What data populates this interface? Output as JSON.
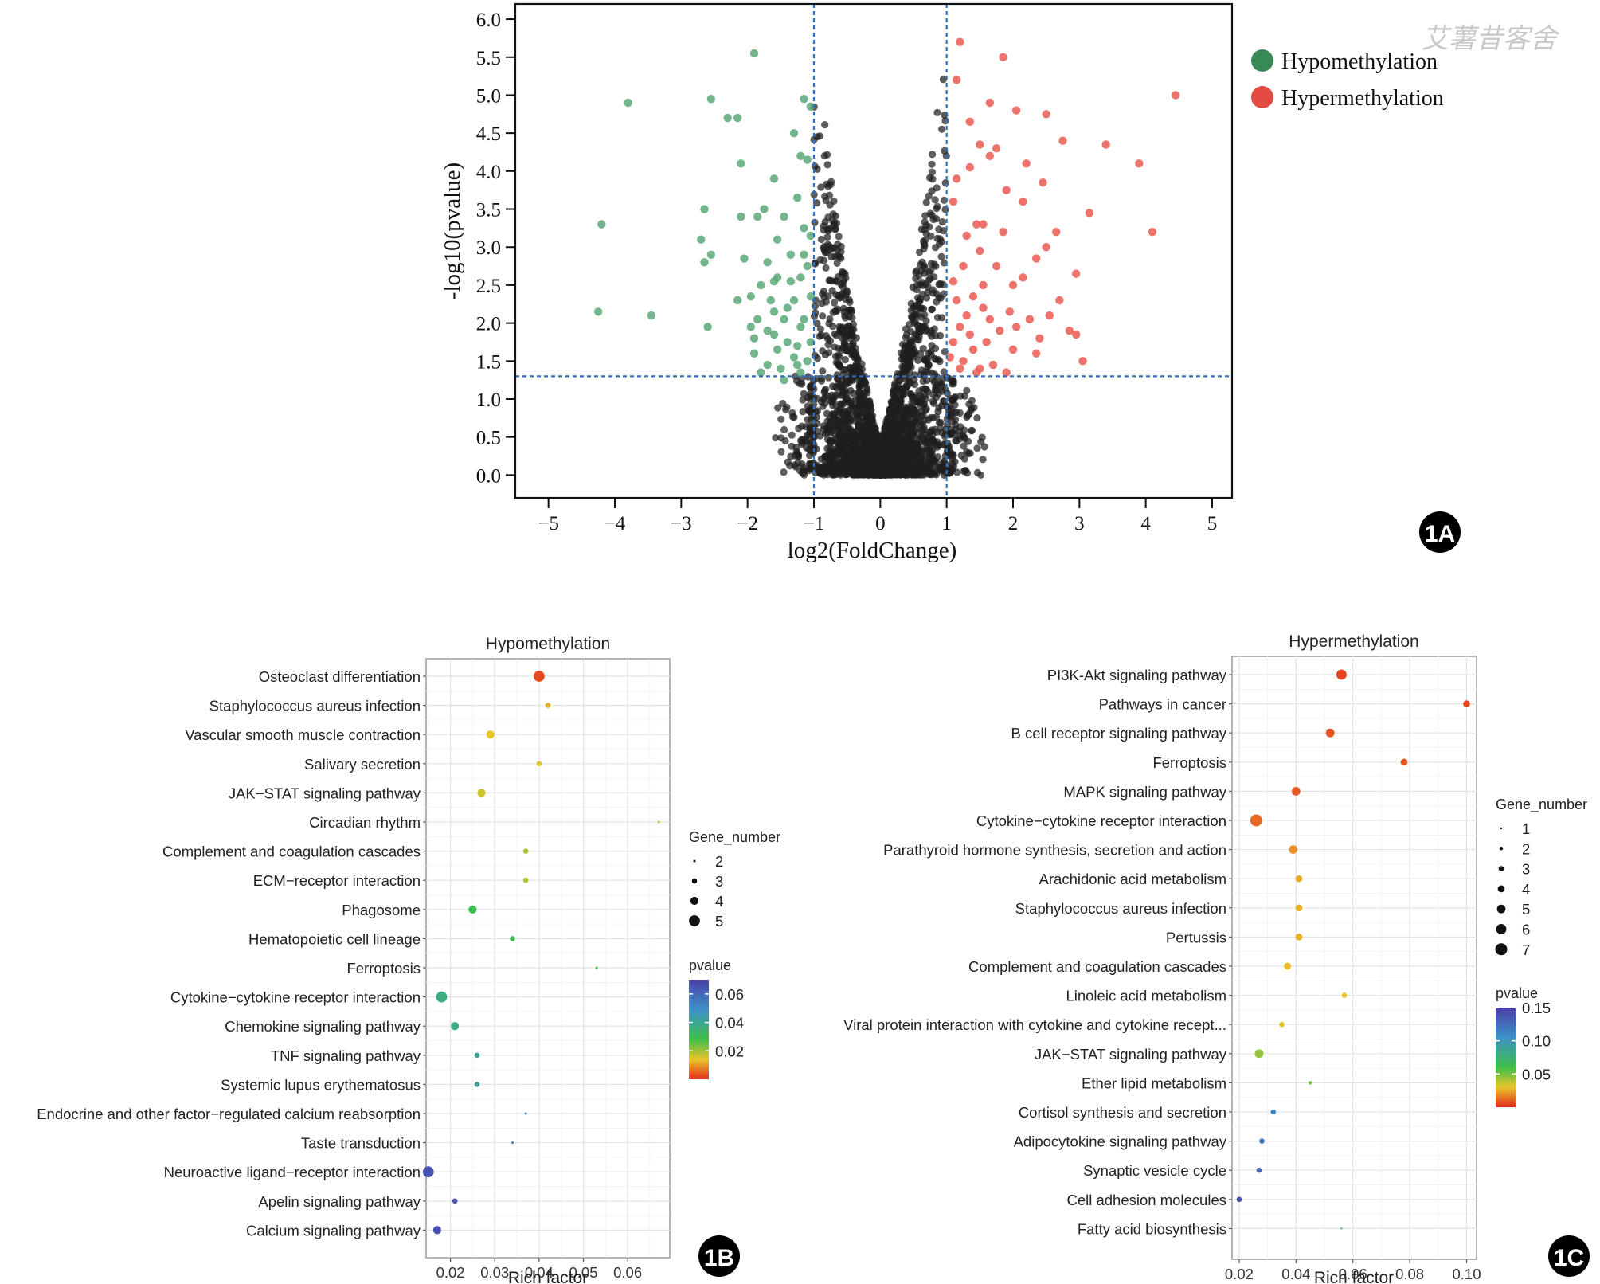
{
  "watermark": "艾薯昔客舍",
  "chart_data": [
    {
      "id": "volcano",
      "panel_label": "1A",
      "type": "scatter",
      "xlabel": "log2(FoldChange)",
      "ylabel": "-log10(pvalue)",
      "xlim": [
        -5.5,
        5.3
      ],
      "ylim": [
        -0.3,
        6.2
      ],
      "xticks": [
        -5,
        -4,
        -3,
        -2,
        -1,
        0,
        1,
        2,
        3,
        4,
        5
      ],
      "xtick_labels": [
        "−5",
        "−4",
        "−3",
        "−2",
        "−1",
        "0",
        "1",
        "2",
        "3",
        "4",
        "5"
      ],
      "yticks": [
        0,
        0.5,
        1,
        1.5,
        2,
        2.5,
        3,
        3.5,
        4,
        4.5,
        5,
        5.5,
        6
      ],
      "ytick_labels": [
        "0.0",
        "0.5",
        "1.0",
        "1.5",
        "2.0",
        "2.5",
        "3.0",
        "3.5",
        "4.0",
        "4.5",
        "5.0",
        "5.5",
        "6.0"
      ],
      "thresholds": {
        "x": [
          -1,
          1
        ],
        "y": 1.3
      },
      "legend": [
        {
          "label": "Hypomethylation",
          "color": "#3a8a57"
        },
        {
          "label": "Hypermethylation",
          "color": "#e24c43"
        }
      ],
      "colors": {
        "hypo": "#5aa878",
        "hyper": "#ea5a52",
        "ns": "#1e1e1e"
      },
      "series": [
        {
          "name": "Hypomethylation",
          "points": [
            [
              -3.8,
              4.9
            ],
            [
              -4.2,
              3.3
            ],
            [
              -4.25,
              2.15
            ],
            [
              -3.45,
              2.1
            ],
            [
              -2.55,
              4.95
            ],
            [
              -2.3,
              4.7
            ],
            [
              -2.15,
              4.7
            ],
            [
              -2.1,
              4.1
            ],
            [
              -1.9,
              5.55
            ],
            [
              -2.65,
              3.5
            ],
            [
              -2.7,
              3.1
            ],
            [
              -2.65,
              2.8
            ],
            [
              -2.55,
              2.9
            ],
            [
              -2.6,
              1.95
            ],
            [
              -2.1,
              3.4
            ],
            [
              -1.85,
              3.4
            ],
            [
              -1.75,
              3.5
            ],
            [
              -1.55,
              3.1
            ],
            [
              -1.45,
              3.4
            ],
            [
              -1.3,
              4.5
            ],
            [
              -1.15,
              4.95
            ],
            [
              -1.2,
              4.2
            ],
            [
              -1.25,
              3.65
            ],
            [
              -1.05,
              4.85
            ],
            [
              -1.1,
              4.15
            ],
            [
              -1.6,
              3.9
            ],
            [
              -2.05,
              2.85
            ],
            [
              -2.15,
              2.3
            ],
            [
              -1.95,
              2.35
            ],
            [
              -1.8,
              2.5
            ],
            [
              -1.7,
              2.8
            ],
            [
              -1.55,
              2.6
            ],
            [
              -1.4,
              2.2
            ],
            [
              -1.35,
              2.9
            ],
            [
              -1.2,
              2.6
            ],
            [
              -1.15,
              2.9
            ],
            [
              -1.05,
              2.35
            ],
            [
              -1.9,
              1.6
            ],
            [
              -1.7,
              1.9
            ],
            [
              -1.5,
              1.4
            ],
            [
              -1.25,
              1.7
            ],
            [
              -1.2,
              1.95
            ],
            [
              -1.1,
              1.5
            ],
            [
              -1.05,
              1.75
            ],
            [
              -1.6,
              2.15
            ],
            [
              -1.85,
              2.05
            ],
            [
              -1.45,
              1.25
            ],
            [
              -1.6,
              2.55
            ],
            [
              -1.3,
              2.3
            ],
            [
              -1.15,
              2.05
            ],
            [
              -1.25,
              1.45
            ],
            [
              -1.4,
              1.75
            ],
            [
              -1.7,
              1.45
            ],
            [
              -1.55,
              1.65
            ],
            [
              -1.9,
              1.8
            ],
            [
              -1.35,
              2.55
            ],
            [
              -1.1,
              2.75
            ],
            [
              -1.05,
              3.15
            ],
            [
              -1.15,
              3.25
            ],
            [
              -1.3,
              1.55
            ],
            [
              -1.45,
              2.05
            ],
            [
              -1.65,
              2.3
            ],
            [
              -1.8,
              1.35
            ],
            [
              -1.95,
              1.95
            ],
            [
              -1.6,
              1.85
            ],
            [
              -1.2,
              1.35
            ]
          ]
        },
        {
          "name": "Hypermethylation",
          "points": [
            [
              1.2,
              5.7
            ],
            [
              1.85,
              5.5
            ],
            [
              1.65,
              4.9
            ],
            [
              2.05,
              4.8
            ],
            [
              2.5,
              4.75
            ],
            [
              2.75,
              4.4
            ],
            [
              3.4,
              4.35
            ],
            [
              3.9,
              4.1
            ],
            [
              4.45,
              5.0
            ],
            [
              4.1,
              3.2
            ],
            [
              3.15,
              3.45
            ],
            [
              2.95,
              2.65
            ],
            [
              2.85,
              1.9
            ],
            [
              2.95,
              1.85
            ],
            [
              3.05,
              1.5
            ],
            [
              1.15,
              5.2
            ],
            [
              1.35,
              4.65
            ],
            [
              1.5,
              4.35
            ],
            [
              1.75,
              4.3
            ],
            [
              1.65,
              4.2
            ],
            [
              2.2,
              4.1
            ],
            [
              2.45,
              3.85
            ],
            [
              1.9,
              3.75
            ],
            [
              1.55,
              3.3
            ],
            [
              1.45,
              3.3
            ],
            [
              1.3,
              3.15
            ],
            [
              2.15,
              3.6
            ],
            [
              2.5,
              3.0
            ],
            [
              2.65,
              3.2
            ],
            [
              2.35,
              2.85
            ],
            [
              2.7,
              2.3
            ],
            [
              2.55,
              2.1
            ],
            [
              2.15,
              2.6
            ],
            [
              2.0,
              2.5
            ],
            [
              1.75,
              2.75
            ],
            [
              1.55,
              2.5
            ],
            [
              1.4,
              2.35
            ],
            [
              1.3,
              2.1
            ],
            [
              1.2,
              1.95
            ],
            [
              1.1,
              1.75
            ],
            [
              1.05,
              1.55
            ],
            [
              1.25,
              1.5
            ],
            [
              1.5,
              1.4
            ],
            [
              1.6,
              1.75
            ],
            [
              1.8,
              1.9
            ],
            [
              1.95,
              2.15
            ],
            [
              2.25,
              2.05
            ],
            [
              2.4,
              1.8
            ],
            [
              2.0,
              1.65
            ],
            [
              1.7,
              1.45
            ],
            [
              1.4,
              1.65
            ],
            [
              1.15,
              2.3
            ],
            [
              1.35,
              1.85
            ],
            [
              1.65,
              2.05
            ],
            [
              1.9,
              1.35
            ],
            [
              2.35,
              1.6
            ],
            [
              1.2,
              1.4
            ],
            [
              1.5,
              2.95
            ],
            [
              1.85,
              3.2
            ],
            [
              1.35,
              4.05
            ],
            [
              1.1,
              3.6
            ],
            [
              1.15,
              3.9
            ],
            [
              1.25,
              2.75
            ],
            [
              1.55,
              2.2
            ],
            [
              2.05,
              1.95
            ],
            [
              1.45,
              1.35
            ],
            [
              1.1,
              2.55
            ]
          ]
        }
      ]
    },
    {
      "id": "enrich-hypo",
      "panel_label": "1B",
      "type": "scatter",
      "title": "Hypomethylation",
      "xlabel": "Rich factor",
      "xlim": [
        0.0145,
        0.0695
      ],
      "xticks": [
        0.02,
        0.03,
        0.04,
        0.05,
        0.06
      ],
      "xtick_labels": [
        "0.02",
        "0.03",
        "0.04",
        "0.05",
        "0.06"
      ],
      "size_legend": {
        "title": "Gene_number",
        "values": [
          2,
          3,
          4,
          5
        ],
        "labels": [
          "2",
          "3",
          "4",
          "5"
        ]
      },
      "color_legend": {
        "title": "pvalue",
        "range": [
          0.0,
          0.07
        ],
        "ticks": [
          0.06,
          0.04,
          0.02
        ],
        "tick_labels": [
          "0.06",
          "0.04",
          "0.02"
        ]
      },
      "pathways": [
        "Osteoclast differentiation",
        "Staphylococcus aureus infection",
        "Vascular smooth muscle contraction",
        "Salivary secretion",
        "JAK−STAT signaling pathway",
        "Circadian rhythm",
        "Complement and coagulation cascades",
        "ECM−receptor interaction",
        "Phagosome",
        "Hematopoietic cell lineage",
        "Ferroptosis",
        "Cytokine−cytokine receptor interaction",
        "Chemokine signaling pathway",
        "TNF signaling pathway",
        "Systemic lupus erythematosus",
        "Endocrine and other factor−regulated calcium reabsorption",
        "Taste transduction",
        "Neuroactive ligand−receptor interaction",
        "Apelin signaling pathway",
        "Calcium signaling pathway"
      ],
      "rich_factor": [
        0.04,
        0.042,
        0.029,
        0.04,
        0.027,
        0.067,
        0.037,
        0.037,
        0.025,
        0.034,
        0.053,
        0.018,
        0.021,
        0.026,
        0.026,
        0.037,
        0.034,
        0.015,
        0.021,
        0.017
      ],
      "gene_number": [
        5,
        3,
        4,
        3,
        4,
        2,
        3,
        3,
        4,
        3,
        2,
        5,
        4,
        3,
        3,
        2,
        2,
        5,
        3,
        4
      ],
      "pvalue": [
        0.003,
        0.012,
        0.014,
        0.015,
        0.016,
        0.018,
        0.019,
        0.019,
        0.03,
        0.03,
        0.03,
        0.037,
        0.038,
        0.04,
        0.04,
        0.052,
        0.054,
        0.065,
        0.065,
        0.066
      ]
    },
    {
      "id": "enrich-hyper",
      "panel_label": "1C",
      "type": "scatter",
      "title": "Hypermethylation",
      "xlabel": "Rich factor",
      "xlim": [
        0.0175,
        0.1035
      ],
      "xticks": [
        0.02,
        0.04,
        0.06,
        0.08,
        0.1
      ],
      "xtick_labels": [
        "0.02",
        "0.04",
        "0.06",
        "0.08",
        "0.10"
      ],
      "size_legend": {
        "title": "Gene_number",
        "values": [
          1,
          2,
          3,
          4,
          5,
          6,
          7
        ],
        "labels": [
          "1",
          "2",
          "3",
          "4",
          "5",
          "6",
          "7"
        ]
      },
      "color_legend": {
        "title": "pvalue",
        "range": [
          0.0,
          0.15
        ],
        "ticks": [
          0.15,
          0.1,
          0.05
        ],
        "tick_labels": [
          "0.15",
          "0.10",
          "0.05"
        ]
      },
      "pathways": [
        "PI3K-Akt signaling pathway",
        "Pathways in cancer",
        "B cell receptor signaling pathway",
        "Ferroptosis",
        "MAPK signaling pathway",
        "Cytokine−cytokine receptor interaction",
        "Parathyroid hormone synthesis, secretion and action",
        "Arachidonic acid metabolism",
        "Staphylococcus aureus infection",
        "Pertussis",
        "Complement and coagulation cascades",
        "Linoleic acid metabolism",
        "Viral protein interaction with cytokine and cytokine recept...",
        "JAK−STAT signaling pathway",
        "Ether lipid metabolism",
        "Cortisol synthesis and secretion",
        "Adipocytokine signaling pathway",
        "Synaptic vesicle cycle",
        "Cell adhesion molecules",
        "Fatty acid biosynthesis"
      ],
      "rich_factor": [
        0.056,
        0.1,
        0.052,
        0.078,
        0.04,
        0.026,
        0.039,
        0.041,
        0.041,
        0.041,
        0.037,
        0.057,
        0.035,
        0.027,
        0.045,
        0.032,
        0.028,
        0.027,
        0.02,
        0.056
      ],
      "gene_number": [
        6,
        4,
        5,
        4,
        5,
        7,
        5,
        4,
        4,
        4,
        4,
        3,
        3,
        5,
        2,
        3,
        3,
        3,
        3,
        1
      ],
      "pvalue": [
        0.005,
        0.006,
        0.008,
        0.008,
        0.009,
        0.012,
        0.02,
        0.025,
        0.026,
        0.026,
        0.028,
        0.03,
        0.032,
        0.045,
        0.05,
        0.11,
        0.12,
        0.13,
        0.14,
        0.09
      ]
    }
  ]
}
